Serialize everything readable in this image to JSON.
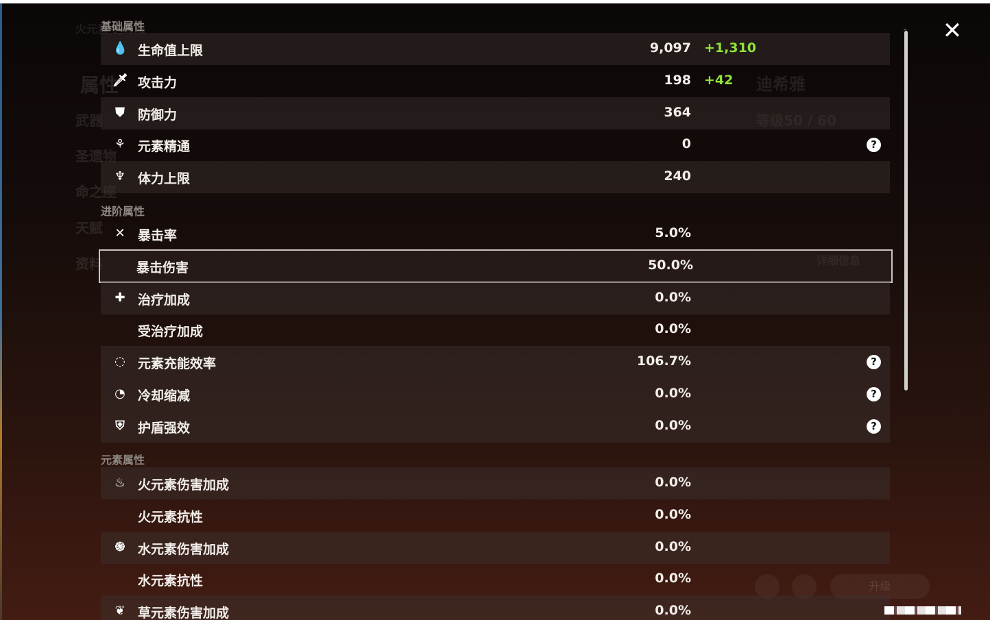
{
  "sections": [
    {
      "title": "基础属性",
      "rows": [
        {
          "icon": "hp-drop-icon",
          "glyph": "💧",
          "label": "生命值上限",
          "value": "9,097",
          "bonus": "+1,310"
        },
        {
          "icon": "sword-icon",
          "glyph": "🗡",
          "label": "攻击力",
          "value": "198",
          "bonus": "+42"
        },
        {
          "icon": "shield-icon",
          "glyph": "⛊",
          "label": "防御力",
          "value": "364"
        },
        {
          "icon": "elemental-mastery-icon",
          "glyph": "⚘",
          "label": "元素精通",
          "value": "0",
          "help": true
        },
        {
          "icon": "stamina-icon",
          "glyph": "♆",
          "label": "体力上限",
          "value": "240"
        }
      ]
    },
    {
      "title": "进阶属性",
      "rows": [
        {
          "icon": "crit-rate-icon",
          "glyph": "✕",
          "label": "暴击率",
          "value": "5.0%"
        },
        {
          "label": "暴击伤害",
          "value": "50.0%",
          "selected": true
        },
        {
          "icon": "healing-cross-icon",
          "glyph": "✚",
          "label": "治疗加成",
          "value": "0.0%"
        },
        {
          "label": "受治疗加成",
          "value": "0.0%"
        },
        {
          "icon": "energy-recharge-icon",
          "glyph": "◌",
          "label": "元素充能效率",
          "value": "106.7%",
          "help": true
        },
        {
          "icon": "cooldown-icon",
          "glyph": "◔",
          "label": "冷却缩减",
          "value": "0.0%",
          "help": true
        },
        {
          "icon": "shield-strength-icon",
          "glyph": "⛨",
          "label": "护盾强效",
          "value": "0.0%",
          "help": true
        }
      ]
    },
    {
      "title": "元素属性",
      "rows": [
        {
          "icon": "pyro-icon",
          "glyph": "♨",
          "label": "火元素伤害加成",
          "value": "0.0%"
        },
        {
          "label": "火元素抗性",
          "value": "0.0%"
        },
        {
          "icon": "hydro-icon",
          "glyph": "֍",
          "label": "水元素伤害加成",
          "value": "0.0%"
        },
        {
          "label": "水元素抗性",
          "value": "0.0%"
        },
        {
          "icon": "dendro-icon",
          "glyph": "❦",
          "label": "草元素伤害加成",
          "value": "0.0%"
        }
      ]
    }
  ],
  "background": {
    "element_title": "火元素·迪希雅",
    "character_name": "迪希雅",
    "level": "等级50 / 60",
    "menu": [
      "属性",
      "武器",
      "圣遗物",
      "命之座",
      "天赋",
      "资料"
    ],
    "details_button": "详细信息",
    "upgrade_button": "升级"
  },
  "close_glyph": "✕",
  "help_glyph": "?",
  "colors": {
    "bonus": "#8fe33a",
    "selection_border": "#c9c4c0"
  }
}
